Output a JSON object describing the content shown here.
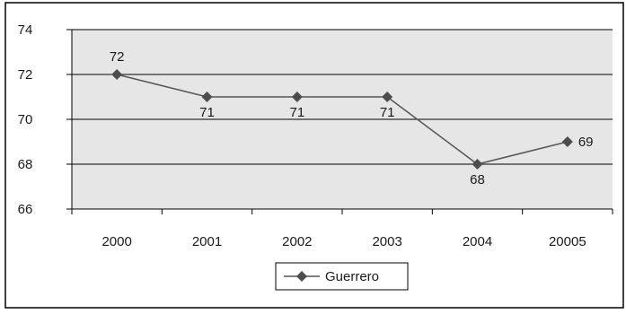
{
  "chart_data": {
    "type": "line",
    "categories": [
      "2000",
      "2001",
      "2002",
      "2003",
      "2004",
      "20005"
    ],
    "series": [
      {
        "name": "Guerrero",
        "values": [
          72,
          71,
          71,
          71,
          68,
          69
        ]
      }
    ],
    "data_labels": [
      "72",
      "71",
      "71",
      "71",
      "68",
      "69"
    ],
    "y_ticks": [
      "66",
      "68",
      "70",
      "72",
      "74"
    ],
    "ylim": [
      66,
      74
    ],
    "grid": true,
    "legend_position": "bottom-center",
    "colors": {
      "plot_background": "#e6e6e6",
      "line": "#555555",
      "marker": "#4d4d4d",
      "gridline": "#000000"
    }
  }
}
